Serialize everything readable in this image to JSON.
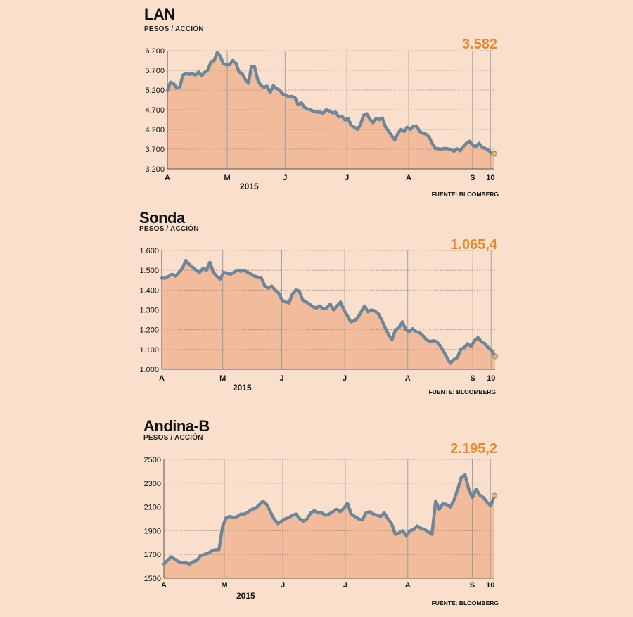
{
  "colors": {
    "background": "#f9dfcc",
    "area_fill": "#f2bc9c",
    "line": "#6f8598",
    "value_text": "#e28a2e",
    "marker": "#e9b96a"
  },
  "chart_data": [
    {
      "type": "area",
      "title": "LAN",
      "subtitle": "PESOS / ACCIÓN",
      "last_value_label": "3.582",
      "source": "FUENTE: BLOOMBERG",
      "year_label": "2015",
      "ylim": [
        3200,
        6200
      ],
      "yticks": [
        3200,
        3700,
        4200,
        4700,
        5200,
        5700,
        6200
      ],
      "ytick_labels": [
        "3.200",
        "3.700",
        "4.200",
        "4.700",
        "5.200",
        "5.700",
        "6.200"
      ],
      "xlim": [
        0,
        164
      ],
      "xticks": [
        0,
        30,
        59,
        90,
        121,
        153,
        162
      ],
      "xtick_labels": [
        "A",
        "M",
        "J",
        "J",
        "A",
        "S",
        "10"
      ],
      "gridlines": "horizontal dotted, vertical month dividers",
      "values": [
        5180,
        5400,
        5360,
        5250,
        5280,
        5580,
        5620,
        5600,
        5610,
        5580,
        5660,
        5560,
        5650,
        5710,
        5920,
        5950,
        6150,
        6050,
        5870,
        5840,
        5850,
        5950,
        5880,
        5660,
        5620,
        5470,
        5370,
        5800,
        5790,
        5460,
        5310,
        5270,
        5300,
        5140,
        5310,
        5240,
        5200,
        5100,
        5070,
        5030,
        5040,
        5000,
        4820,
        4880,
        4760,
        4720,
        4700,
        4650,
        4640,
        4640,
        4610,
        4700,
        4670,
        4620,
        4640,
        4520,
        4540,
        4440,
        4480,
        4300,
        4260,
        4200,
        4330,
        4560,
        4600,
        4460,
        4370,
        4480,
        4450,
        4490,
        4270,
        4160,
        4040,
        3930,
        4100,
        4200,
        4150,
        4260,
        4200,
        4280,
        4290,
        4150,
        4100,
        4080,
        4010,
        3850,
        3720,
        3710,
        3700,
        3720,
        3710,
        3690,
        3650,
        3710,
        3660,
        3760,
        3850,
        3900,
        3800,
        3760,
        3850,
        3750,
        3720,
        3680,
        3600,
        3582
      ]
    },
    {
      "type": "area",
      "title": "Sonda",
      "subtitle": "PESOS / ACCIÓN",
      "last_value_label": "1.065,4",
      "source": "FUENTE: BLOOMBERG",
      "year_label": "2015",
      "ylim": [
        1000,
        1600
      ],
      "yticks": [
        1000,
        1100,
        1200,
        1300,
        1400,
        1500,
        1600
      ],
      "ytick_labels": [
        "1.000",
        "1.100",
        "1.200",
        "1.300",
        "1.400",
        "1.500",
        "1.600"
      ],
      "xlim": [
        0,
        164
      ],
      "xticks": [
        0,
        30,
        59,
        90,
        121,
        153,
        162
      ],
      "xtick_labels": [
        "A",
        "M",
        "J",
        "J",
        "A",
        "S",
        "10"
      ],
      "gridlines": "horizontal dotted, vertical month dividers",
      "values": [
        1460,
        1460,
        1470,
        1480,
        1470,
        1490,
        1510,
        1550,
        1530,
        1515,
        1500,
        1490,
        1510,
        1500,
        1540,
        1490,
        1470,
        1455,
        1490,
        1485,
        1480,
        1490,
        1500,
        1495,
        1500,
        1490,
        1480,
        1470,
        1465,
        1460,
        1420,
        1410,
        1420,
        1400,
        1385,
        1350,
        1340,
        1335,
        1380,
        1400,
        1395,
        1350,
        1340,
        1330,
        1315,
        1310,
        1320,
        1305,
        1310,
        1330,
        1300,
        1320,
        1340,
        1300,
        1270,
        1240,
        1245,
        1260,
        1290,
        1320,
        1290,
        1300,
        1295,
        1280,
        1250,
        1210,
        1175,
        1150,
        1200,
        1210,
        1240,
        1200,
        1190,
        1205,
        1190,
        1185,
        1170,
        1150,
        1140,
        1145,
        1140,
        1120,
        1090,
        1060,
        1030,
        1050,
        1060,
        1100,
        1110,
        1130,
        1115,
        1145,
        1160,
        1140,
        1130,
        1110,
        1095,
        1065.4
      ]
    },
    {
      "type": "area",
      "title": "Andina-B",
      "subtitle": "PESOS / ACCIÓN",
      "last_value_label": "2.195,2",
      "source": "FUENTE: BLOOMBERG",
      "year_label": "2015",
      "ylim": [
        1500,
        2500
      ],
      "yticks": [
        1500,
        1700,
        1900,
        2100,
        2300,
        2500
      ],
      "ytick_labels": [
        "1500",
        "1700",
        "1900",
        "2100",
        "2300",
        "2500"
      ],
      "xlim": [
        0,
        164
      ],
      "xticks": [
        0,
        30,
        59,
        90,
        121,
        153,
        162
      ],
      "xtick_labels": [
        "A",
        "M",
        "J",
        "J",
        "A",
        "S",
        "10"
      ],
      "gridlines": "horizontal dotted, vertical month dividers",
      "values": [
        1620,
        1650,
        1680,
        1660,
        1640,
        1630,
        1630,
        1620,
        1640,
        1650,
        1690,
        1700,
        1710,
        1730,
        1740,
        1740,
        1940,
        2010,
        2020,
        2010,
        2020,
        2040,
        2040,
        2060,
        2080,
        2090,
        2120,
        2150,
        2120,
        2060,
        2000,
        1960,
        1980,
        2000,
        2010,
        2030,
        2040,
        2000,
        1980,
        2000,
        2050,
        2070,
        2050,
        2050,
        2030,
        2040,
        2060,
        2080,
        2060,
        2090,
        2130,
        2040,
        2020,
        2000,
        1990,
        2050,
        2060,
        2040,
        2030,
        2020,
        2050,
        2000,
        1960,
        1870,
        1880,
        1900,
        1860,
        1900,
        1910,
        1940,
        1920,
        1910,
        1890,
        1870,
        2150,
        2080,
        2130,
        2120,
        2100,
        2160,
        2250,
        2350,
        2370,
        2250,
        2180,
        2250,
        2200,
        2180,
        2140,
        2110,
        2195.2
      ]
    }
  ]
}
